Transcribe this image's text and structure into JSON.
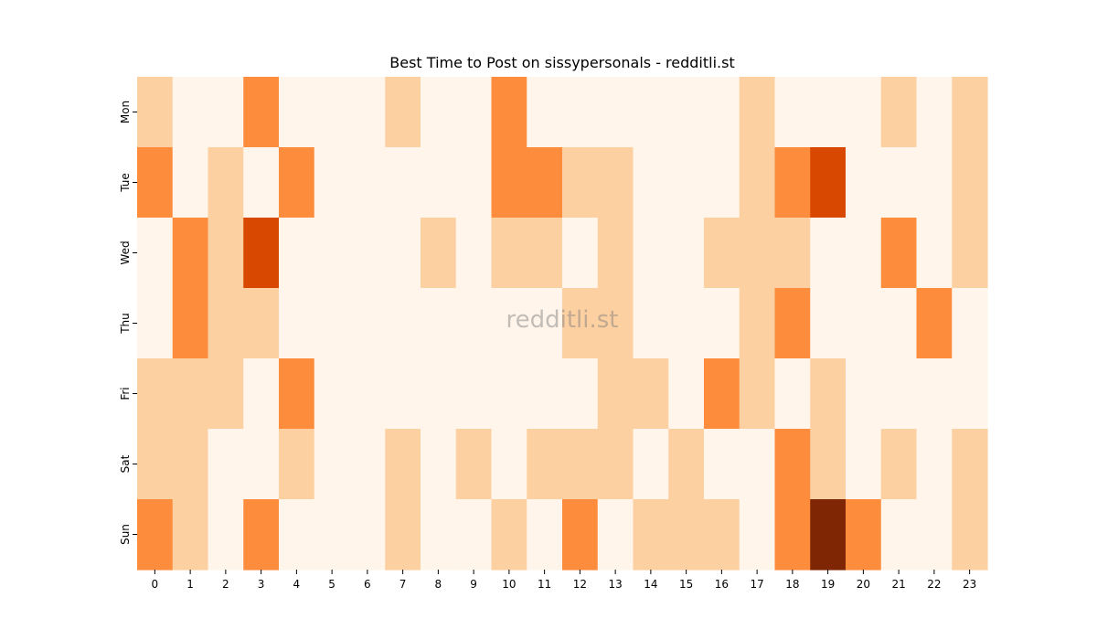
{
  "chart_data": {
    "type": "heatmap",
    "title": "Best Time to Post on sissypersonals - redditli.st",
    "watermark": "redditli.st",
    "x": [
      "0",
      "1",
      "2",
      "3",
      "4",
      "5",
      "6",
      "7",
      "8",
      "9",
      "10",
      "11",
      "12",
      "13",
      "14",
      "15",
      "16",
      "17",
      "18",
      "19",
      "20",
      "21",
      "22",
      "23"
    ],
    "y": [
      "Mon",
      "Tue",
      "Wed",
      "Thu",
      "Fri",
      "Sat",
      "Sun"
    ],
    "vmin": 0,
    "vmax": 4,
    "colorscale": [
      "#fff5eb",
      "#fdd0a2",
      "#fd8d3c",
      "#d94801",
      "#7f2704"
    ],
    "values": [
      [
        1,
        0,
        0,
        2,
        0,
        0,
        0,
        1,
        0,
        0,
        2,
        0,
        0,
        0,
        0,
        0,
        0,
        1,
        0,
        0,
        0,
        1,
        0,
        1
      ],
      [
        2,
        0,
        1,
        0,
        2,
        0,
        0,
        0,
        0,
        0,
        2,
        2,
        1,
        1,
        0,
        0,
        0,
        1,
        2,
        3,
        0,
        0,
        0,
        1
      ],
      [
        0,
        2,
        1,
        3,
        0,
        0,
        0,
        0,
        1,
        0,
        1,
        1,
        0,
        1,
        0,
        0,
        1,
        1,
        1,
        0,
        0,
        2,
        0,
        1
      ],
      [
        0,
        2,
        1,
        1,
        0,
        0,
        0,
        0,
        0,
        0,
        0,
        0,
        1,
        1,
        0,
        0,
        0,
        1,
        2,
        0,
        0,
        0,
        2,
        0
      ],
      [
        1,
        1,
        1,
        0,
        2,
        0,
        0,
        0,
        0,
        0,
        0,
        0,
        0,
        1,
        1,
        0,
        2,
        1,
        0,
        1,
        0,
        0,
        0,
        0
      ],
      [
        1,
        1,
        0,
        0,
        1,
        0,
        0,
        1,
        0,
        1,
        0,
        1,
        1,
        1,
        0,
        1,
        0,
        0,
        2,
        1,
        0,
        1,
        0,
        1
      ],
      [
        2,
        1,
        0,
        2,
        0,
        0,
        0,
        1,
        0,
        0,
        1,
        0,
        2,
        0,
        1,
        1,
        1,
        0,
        2,
        4,
        2,
        0,
        0,
        1
      ]
    ]
  }
}
